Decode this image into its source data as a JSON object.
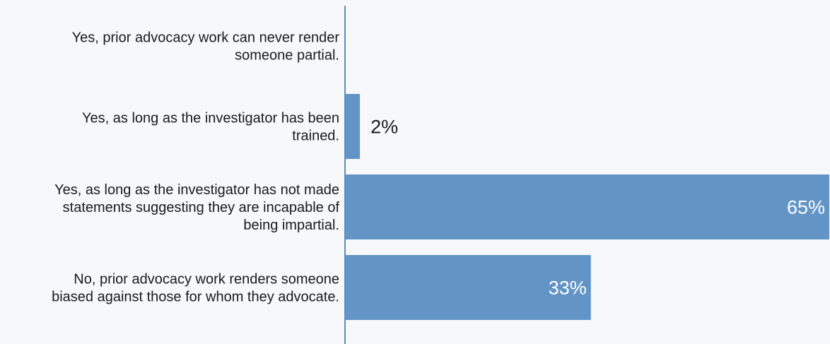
{
  "chart_data": {
    "type": "bar",
    "orientation": "horizontal",
    "categories": [
      [
        "Yes, prior advocacy work can never render",
        "someone partial."
      ],
      [
        "Yes, as long as the investigator has been",
        "trained."
      ],
      [
        "Yes, as long as the investigator has not made",
        "statements suggesting they are incapable of",
        "being impartial."
      ],
      [
        "No, prior advocacy work renders someone",
        "biased against those for whom they advocate."
      ]
    ],
    "values": [
      0,
      2,
      65,
      33
    ],
    "value_labels": [
      "",
      "2%",
      "65%",
      "33%"
    ],
    "xlim": [
      0,
      65
    ],
    "grid": false,
    "legend": "none",
    "colors": {
      "bar": "#6394c6",
      "axis": "#5b8fc4",
      "label_text": "#1a1a1a",
      "value_inside": "#ffffff",
      "value_outside": "#1a1a1a",
      "background": "#f7f8fa"
    }
  }
}
